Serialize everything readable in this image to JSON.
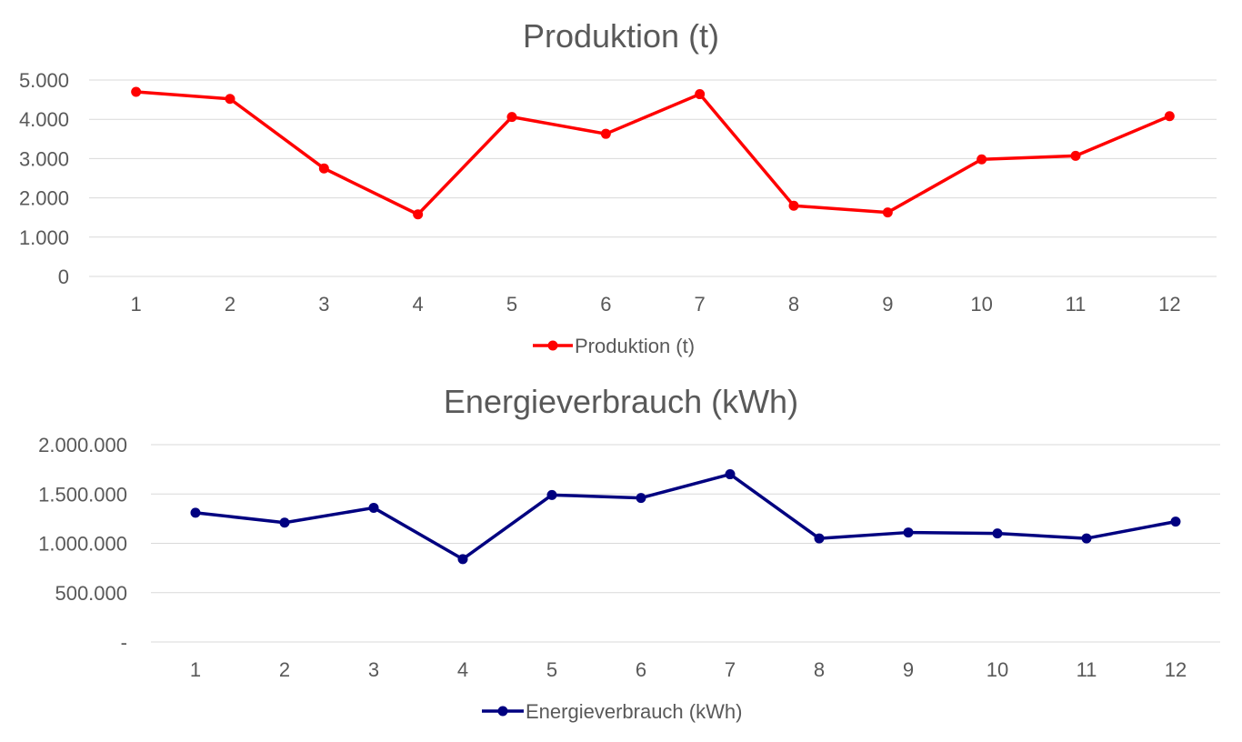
{
  "chart_data": [
    {
      "type": "line",
      "title": "Produktion (t)",
      "categories": [
        "1",
        "2",
        "3",
        "4",
        "5",
        "6",
        "7",
        "8",
        "9",
        "10",
        "11",
        "12"
      ],
      "series": [
        {
          "name": "Produktion (t)",
          "color": "#ff0000",
          "values": [
            4700,
            4520,
            2750,
            1580,
            4060,
            3630,
            4640,
            1800,
            1630,
            2980,
            3070,
            4080
          ]
        }
      ],
      "ylim": [
        0,
        5000
      ],
      "yticks": [
        0,
        1000,
        2000,
        3000,
        4000,
        5000
      ],
      "ytick_labels": [
        "0",
        "1.000",
        "2.000",
        "3.000",
        "4.000",
        "5.000"
      ],
      "xlabel": "",
      "ylabel": "",
      "grid": true,
      "legend": "bottom"
    },
    {
      "type": "line",
      "title": "Energieverbrauch (kWh)",
      "categories": [
        "1",
        "2",
        "3",
        "4",
        "5",
        "6",
        "7",
        "8",
        "9",
        "10",
        "11",
        "12"
      ],
      "series": [
        {
          "name": "Energieverbrauch (kWh)",
          "color": "#000080",
          "values": [
            1310000,
            1210000,
            1360000,
            840000,
            1490000,
            1460000,
            1700000,
            1050000,
            1110000,
            1100000,
            1050000,
            1220000
          ]
        }
      ],
      "ylim": [
        0,
        2000000
      ],
      "yticks": [
        0,
        500000,
        1000000,
        1500000,
        2000000
      ],
      "ytick_labels": [
        "-",
        "500.000",
        "1.000.000",
        "1.500.000",
        "2.000.000"
      ],
      "xlabel": "",
      "ylabel": "",
      "grid": true,
      "legend": "bottom"
    }
  ]
}
